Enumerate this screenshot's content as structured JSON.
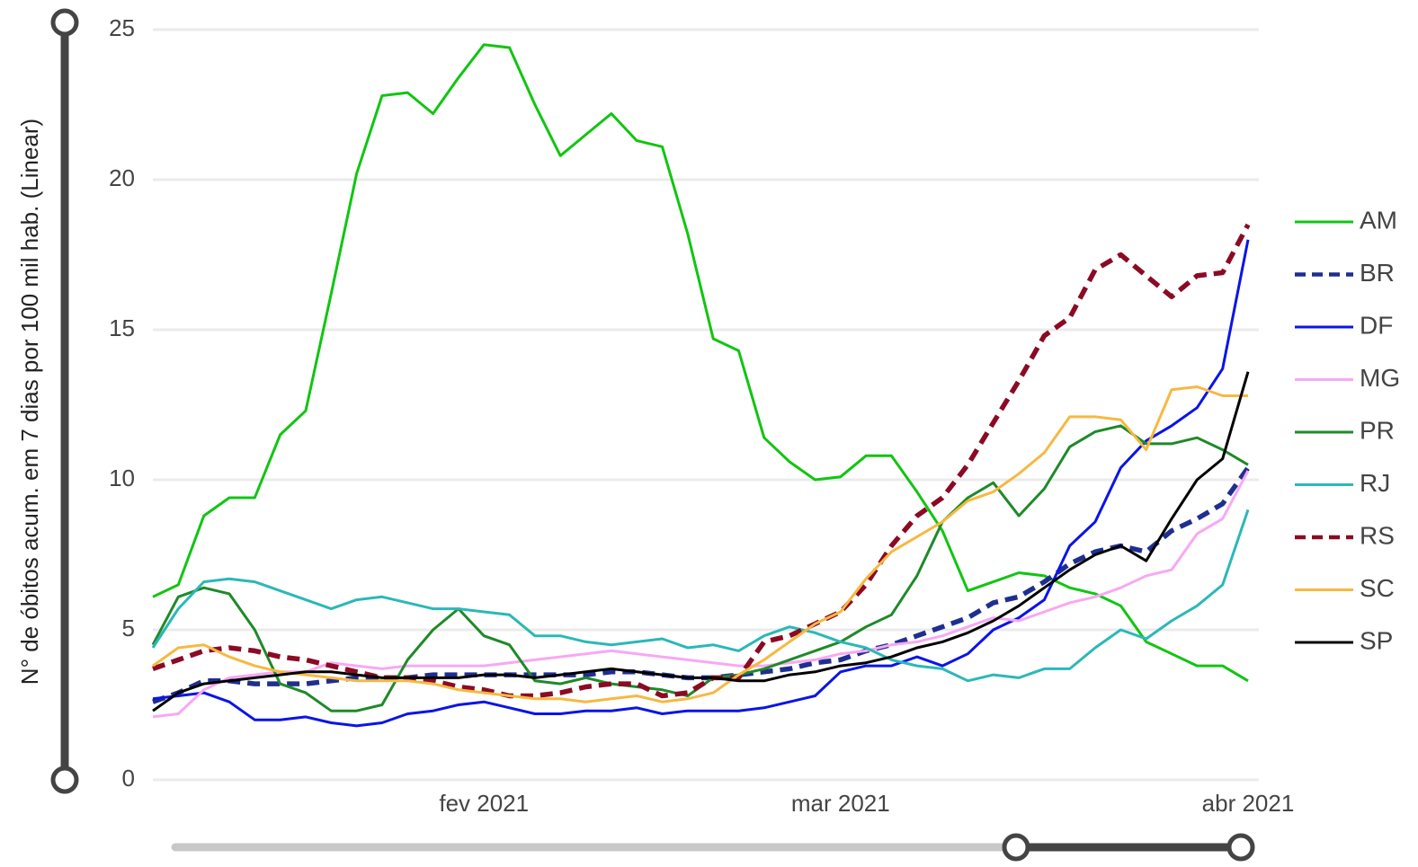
{
  "chart_data": {
    "type": "line",
    "y_label": "N° de óbitos acum. em 7 dias por 100 mil hab. (Linear)",
    "categories": [
      null,
      null,
      null,
      null,
      null,
      null,
      null,
      null,
      null,
      null,
      null,
      null,
      null,
      "fev 2021",
      null,
      null,
      null,
      null,
      null,
      null,
      null,
      null,
      null,
      null,
      null,
      null,
      null,
      "mar 2021",
      null,
      null,
      null,
      null,
      null,
      null,
      null,
      null,
      null,
      null,
      null,
      null,
      null,
      null,
      null,
      "abr 2021"
    ],
    "ylim": [
      0,
      25
    ],
    "yticks": [
      0,
      5,
      10,
      15,
      20,
      25
    ],
    "grid": true,
    "legend": "right",
    "series": [
      {
        "name": "AM",
        "color": "#11c511",
        "dash": false,
        "values": [
          6.1,
          6.5,
          8.8,
          9.4,
          9.4,
          11.5,
          12.3,
          16.2,
          20.2,
          22.8,
          22.9,
          22.2,
          23.4,
          24.5,
          24.4,
          22.5,
          20.8,
          21.5,
          22.2,
          21.3,
          21.1,
          18.2,
          14.7,
          14.3,
          11.4,
          10.6,
          10.0,
          10.1,
          10.8,
          10.8,
          9.6,
          8.3,
          6.3,
          6.6,
          6.9,
          6.8,
          6.4,
          6.2,
          5.8,
          4.6,
          4.2,
          3.8,
          3.8,
          3.3
        ]
      },
      {
        "name": "BR",
        "color": "#1f2f8f",
        "dash": true,
        "values": [
          2.6,
          2.9,
          3.3,
          3.3,
          3.2,
          3.2,
          3.2,
          3.3,
          3.4,
          3.4,
          3.4,
          3.5,
          3.5,
          3.5,
          3.5,
          3.5,
          3.5,
          3.5,
          3.6,
          3.6,
          3.5,
          3.4,
          3.4,
          3.5,
          3.6,
          3.7,
          3.9,
          4.0,
          4.3,
          4.5,
          4.8,
          5.1,
          5.4,
          5.9,
          6.1,
          6.6,
          7.2,
          7.6,
          7.8,
          7.6,
          8.3,
          8.7,
          9.2,
          10.4
        ]
      },
      {
        "name": "DF",
        "color": "#0a14e8",
        "dash": false,
        "values": [
          2.7,
          2.8,
          2.9,
          2.6,
          2.0,
          2.0,
          2.1,
          1.9,
          1.8,
          1.9,
          2.2,
          2.3,
          2.5,
          2.6,
          2.4,
          2.2,
          2.2,
          2.3,
          2.3,
          2.4,
          2.2,
          2.3,
          2.3,
          2.3,
          2.4,
          2.6,
          2.8,
          3.6,
          3.8,
          3.8,
          4.1,
          3.8,
          4.2,
          5.0,
          5.4,
          6.0,
          7.8,
          8.6,
          10.4,
          11.3,
          11.8,
          12.4,
          13.7,
          18.0
        ]
      },
      {
        "name": "MG",
        "color": "#f7a8f5",
        "dash": false,
        "values": [
          2.1,
          2.2,
          3.0,
          3.4,
          3.5,
          3.6,
          3.6,
          3.9,
          3.8,
          3.7,
          3.8,
          3.8,
          3.8,
          3.8,
          3.9,
          4.0,
          4.1,
          4.2,
          4.3,
          4.2,
          4.1,
          4.0,
          3.9,
          3.8,
          3.8,
          3.9,
          4.0,
          4.2,
          4.3,
          4.5,
          4.6,
          4.8,
          5.1,
          5.4,
          5.3,
          5.6,
          5.9,
          6.1,
          6.4,
          6.8,
          7.0,
          8.2,
          8.7,
          10.3
        ]
      },
      {
        "name": "PR",
        "color": "#1e8a28",
        "dash": false,
        "values": [
          4.5,
          6.1,
          6.4,
          6.2,
          5.0,
          3.2,
          2.9,
          2.3,
          2.3,
          2.5,
          4.0,
          5.0,
          5.7,
          4.8,
          4.5,
          3.3,
          3.2,
          3.4,
          3.2,
          3.1,
          3.0,
          2.8,
          3.4,
          3.5,
          3.7,
          4.0,
          4.3,
          4.6,
          5.1,
          5.5,
          6.8,
          8.6,
          9.4,
          9.9,
          8.8,
          9.7,
          11.1,
          11.6,
          11.8,
          11.2,
          11.2,
          11.4,
          11.0,
          10.5
        ]
      },
      {
        "name": "RJ",
        "color": "#2bb8b8",
        "dash": false,
        "values": [
          4.4,
          5.7,
          6.6,
          6.7,
          6.6,
          6.3,
          6.0,
          5.7,
          6.0,
          6.1,
          5.9,
          5.7,
          5.7,
          5.6,
          5.5,
          4.8,
          4.8,
          4.6,
          4.5,
          4.6,
          4.7,
          4.4,
          4.5,
          4.3,
          4.8,
          5.1,
          4.9,
          4.6,
          4.4,
          4.0,
          3.8,
          3.7,
          3.3,
          3.5,
          3.4,
          3.7,
          3.7,
          4.4,
          5.0,
          4.7,
          5.3,
          5.8,
          6.5,
          9.0
        ]
      },
      {
        "name": "RS",
        "color": "#8b0a24",
        "dash": true,
        "values": [
          3.7,
          4.0,
          4.3,
          4.4,
          4.3,
          4.1,
          4.0,
          3.8,
          3.6,
          3.4,
          3.4,
          3.3,
          3.1,
          3.0,
          2.8,
          2.8,
          2.9,
          3.1,
          3.2,
          3.2,
          2.8,
          2.9,
          3.4,
          3.4,
          4.6,
          4.8,
          5.2,
          5.6,
          6.5,
          7.8,
          8.8,
          9.4,
          10.5,
          11.9,
          13.3,
          14.8,
          15.4,
          17.0,
          17.5,
          16.8,
          16.1,
          16.8,
          16.9,
          18.5
        ]
      },
      {
        "name": "SC",
        "color": "#f5b942",
        "dash": false,
        "values": [
          3.8,
          4.4,
          4.5,
          4.1,
          3.8,
          3.6,
          3.5,
          3.4,
          3.3,
          3.3,
          3.3,
          3.2,
          3.0,
          2.9,
          2.8,
          2.7,
          2.7,
          2.6,
          2.7,
          2.8,
          2.6,
          2.7,
          2.9,
          3.5,
          4.0,
          4.6,
          5.2,
          5.6,
          6.7,
          7.6,
          8.1,
          8.6,
          9.3,
          9.6,
          10.2,
          10.9,
          12.1,
          12.1,
          12.0,
          11.0,
          13.0,
          13.1,
          12.8,
          12.8
        ]
      },
      {
        "name": "SP",
        "color": "#000000",
        "dash": false,
        "values": [
          2.3,
          2.9,
          3.2,
          3.3,
          3.4,
          3.5,
          3.6,
          3.6,
          3.5,
          3.4,
          3.4,
          3.4,
          3.4,
          3.5,
          3.5,
          3.4,
          3.5,
          3.6,
          3.7,
          3.6,
          3.5,
          3.4,
          3.4,
          3.3,
          3.3,
          3.5,
          3.6,
          3.8,
          3.9,
          4.1,
          4.4,
          4.6,
          4.9,
          5.3,
          5.8,
          6.4,
          7.0,
          7.5,
          7.8,
          7.3,
          8.7,
          10.0,
          10.7,
          13.6
        ]
      }
    ]
  }
}
